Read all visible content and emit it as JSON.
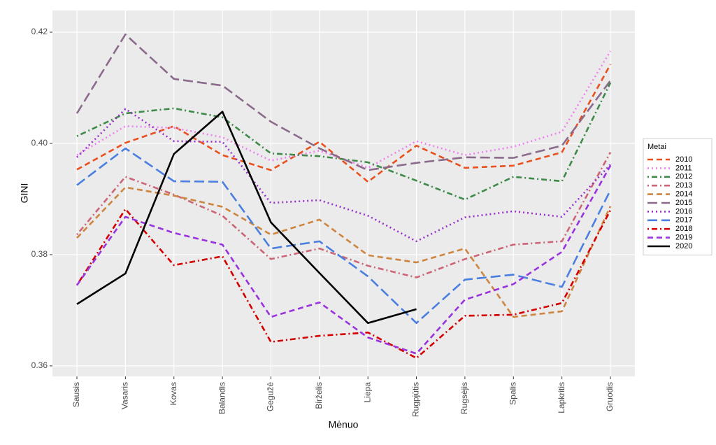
{
  "chart_data": {
    "type": "line",
    "x_label": "Mėnuo",
    "y_label": "GINI",
    "legend_title": "Metai",
    "legend": "right",
    "grid": true,
    "categories": [
      "Sausis",
      "Vasaris",
      "Kovas",
      "Balandis",
      "Gegužė",
      "Birželis",
      "Liepa",
      "Rugpjūtis",
      "Rugsėjis",
      "Spalis",
      "Lapkritis",
      "Gruodis"
    ],
    "ylim": [
      0.3581,
      0.4239
    ],
    "yticks": [
      {
        "value": 0.36,
        "label": "0.36"
      },
      {
        "value": 0.38,
        "label": "0.38"
      },
      {
        "value": 0.4,
        "label": "0.40"
      },
      {
        "value": 0.42,
        "label": "0.42"
      }
    ],
    "series": [
      {
        "name": "2010",
        "color": "#e8501e",
        "linetype": "dashed",
        "values": [
          0.3953,
          0.4001,
          0.4031,
          0.3979,
          0.3952,
          0.4003,
          0.3931,
          0.3996,
          0.3956,
          0.396,
          0.3984,
          0.4142
        ]
      },
      {
        "name": "2011",
        "color": "#ee82ee",
        "linetype": "dotted",
        "values": [
          0.3979,
          0.4031,
          0.4028,
          0.4011,
          0.3969,
          0.3987,
          0.3956,
          0.4004,
          0.3979,
          0.3994,
          0.4021,
          0.4166
        ]
      },
      {
        "name": "2012",
        "color": "#3f8a4a",
        "linetype": "dotdash",
        "values": [
          0.4013,
          0.4054,
          0.4063,
          0.4047,
          0.3982,
          0.3977,
          0.3966,
          0.3933,
          0.3899,
          0.394,
          0.3932,
          0.4109
        ]
      },
      {
        "name": "2013",
        "color": "#cc6677",
        "linetype": "dotdash",
        "values": [
          0.3836,
          0.394,
          0.3908,
          0.387,
          0.3792,
          0.3811,
          0.378,
          0.3759,
          0.3792,
          0.3818,
          0.3824,
          0.3984
        ]
      },
      {
        "name": "2014",
        "color": "#cd853f",
        "linetype": "dashed",
        "values": [
          0.383,
          0.3921,
          0.3906,
          0.3886,
          0.3836,
          0.3863,
          0.3799,
          0.3786,
          0.3811,
          0.3688,
          0.3698,
          0.3887
        ]
      },
      {
        "name": "2015",
        "color": "#8b6b8b",
        "linetype": "longdash",
        "values": [
          0.4054,
          0.4196,
          0.4116,
          0.4104,
          0.4039,
          0.3991,
          0.3952,
          0.3965,
          0.3975,
          0.3974,
          0.3996,
          0.4113
        ]
      },
      {
        "name": "2016",
        "color": "#9932cc",
        "linetype": "dotted",
        "values": [
          0.3975,
          0.4062,
          0.4004,
          0.4003,
          0.3893,
          0.3898,
          0.387,
          0.3824,
          0.3867,
          0.3878,
          0.3868,
          0.3962
        ]
      },
      {
        "name": "2017",
        "color": "#4a7fe0",
        "linetype": "longdash",
        "values": [
          0.3925,
          0.3991,
          0.3932,
          0.3931,
          0.3811,
          0.3824,
          0.3761,
          0.3677,
          0.3755,
          0.3764,
          0.3742,
          0.3916
        ]
      },
      {
        "name": "2018",
        "color": "#d40000",
        "linetype": "dotdash",
        "values": [
          0.3745,
          0.3882,
          0.3781,
          0.3797,
          0.3643,
          0.3654,
          0.366,
          0.3614,
          0.369,
          0.3692,
          0.3713,
          0.388
        ]
      },
      {
        "name": "2019",
        "color": "#9933dd",
        "linetype": "dashed",
        "values": [
          0.3745,
          0.3868,
          0.3839,
          0.3818,
          0.3688,
          0.3714,
          0.3651,
          0.3622,
          0.3719,
          0.3747,
          0.3805,
          0.396
        ]
      },
      {
        "name": "2020",
        "color": "#000000",
        "linetype": "solid",
        "values": [
          0.3711,
          0.3766,
          0.3981,
          0.4057,
          0.3858,
          0.3767,
          0.3677,
          0.3702,
          null,
          null,
          null,
          null
        ]
      }
    ]
  }
}
